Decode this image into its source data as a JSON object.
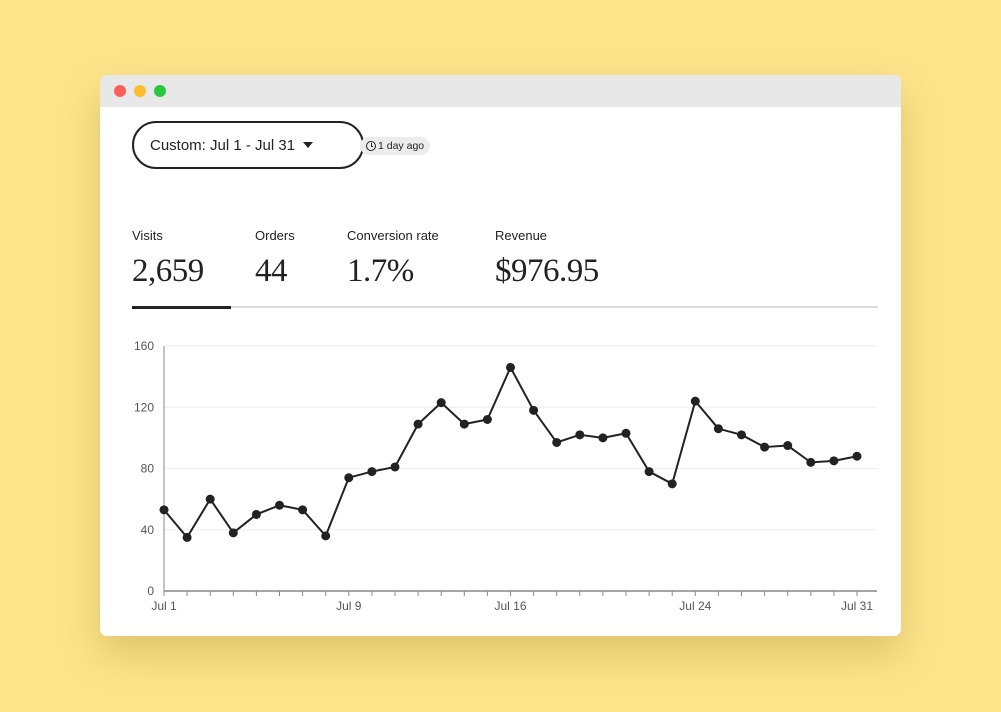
{
  "window": {
    "controls": [
      "close",
      "minimize",
      "maximize"
    ]
  },
  "header": {
    "date_range_label": "Custom: Jul 1 - Jul 31",
    "updated_label": "1 day ago"
  },
  "stats": [
    {
      "label": "Visits",
      "value": "2,659",
      "active": true
    },
    {
      "label": "Orders",
      "value": "44",
      "active": false
    },
    {
      "label": "Conversion rate",
      "value": "1.7%",
      "active": false
    },
    {
      "label": "Revenue",
      "value": "$976.95",
      "active": false
    }
  ],
  "colors": {
    "background": "#fde48b",
    "line": "#222222",
    "grid": "#eeeeee"
  },
  "chart_data": {
    "type": "line",
    "title": "",
    "xlabel": "",
    "ylabel": "",
    "ylim": [
      0,
      160
    ],
    "yticks": [
      0,
      40,
      80,
      120,
      160
    ],
    "x_tick_labels": [
      {
        "day": 1,
        "label": "Jul 1"
      },
      {
        "day": 9,
        "label": "Jul 9"
      },
      {
        "day": 16,
        "label": "Jul 16"
      },
      {
        "day": 24,
        "label": "Jul 24"
      },
      {
        "day": 31,
        "label": "Jul 31"
      }
    ],
    "x_range": [
      1,
      31
    ],
    "series": [
      {
        "name": "Visits",
        "x": [
          1,
          2,
          3,
          4,
          5,
          6,
          7,
          8,
          9,
          10,
          11,
          12,
          13,
          14,
          15,
          16,
          17,
          18,
          19,
          20,
          21,
          22,
          23,
          24,
          25,
          26,
          27,
          28,
          29,
          30,
          31
        ],
        "values": [
          53,
          35,
          60,
          38,
          50,
          56,
          53,
          36,
          74,
          78,
          81,
          109,
          123,
          109,
          112,
          146,
          118,
          97,
          102,
          100,
          103,
          78,
          70,
          124,
          106,
          102,
          94,
          95,
          84,
          85,
          88
        ]
      }
    ]
  }
}
